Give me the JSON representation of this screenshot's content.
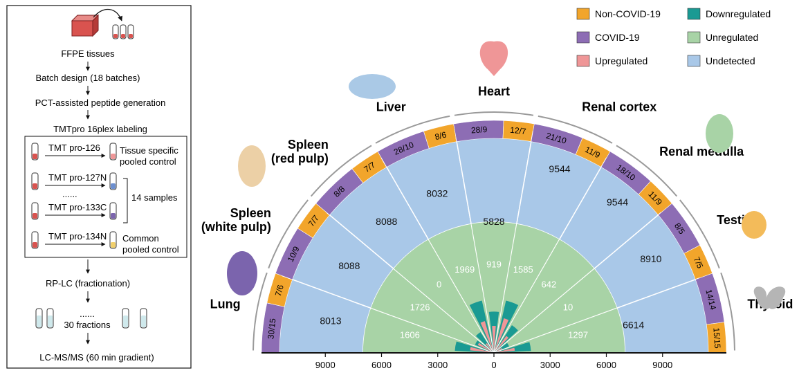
{
  "workflow": {
    "steps": [
      "FFPE tissues",
      "Batch design (18 batches)",
      "PCT-assisted peptide generation",
      "TMTpro 16plex labeling"
    ],
    "labeling_rows": [
      {
        "channel": "TMT pro-126",
        "note_lines": [
          "Tissue specific",
          "pooled control"
        ]
      },
      {
        "channel": "TMT pro-127N",
        "note_lines": []
      },
      {
        "channel": "......",
        "note_lines": []
      },
      {
        "channel": "TMT pro-133C",
        "note_lines": []
      },
      {
        "channel": "TMT pro-134N",
        "note_lines": [
          "Common",
          "pooled control"
        ]
      }
    ],
    "samples_label": "14 samples",
    "rplc_step": "RP-LC (fractionation)",
    "fractions_dots": "......",
    "fractions_label": "30 fractions",
    "lcms_step": "LC-MS/MS (60 min gradient)"
  },
  "legend": [
    {
      "label": "Non-COVID-19",
      "color": "#f2a52b"
    },
    {
      "label": "Downregulated",
      "color": "#1a9a93"
    },
    {
      "label": "COVID-19",
      "color": "#8d6db4"
    },
    {
      "label": "Unregulated",
      "color": "#a8d3a6"
    },
    {
      "label": "Upregulated",
      "color": "#ef9697"
    },
    {
      "label": "Undetected",
      "color": "#a9c8e8"
    }
  ],
  "colors": {
    "non_covid": "#f2a52b",
    "covid": "#8d6db4",
    "upregulated": "#ef9697",
    "downregulated": "#1a9a93",
    "unregulated": "#a8d3a6",
    "undetected": "#a9c8e8",
    "lung_icon": "#7b64ad",
    "spleen_icon": "#ecd0a6",
    "liver_icon": "#aac9e6",
    "heart_icon": "#ef9697",
    "kidney_icon": "#a8d3a6",
    "testis_icon": "#f3bb5a",
    "thyroid_icon": "#b5b5b5"
  },
  "axis": {
    "ticks": [
      9000,
      6000,
      3000,
      0,
      3000,
      6000,
      9000
    ],
    "max": 12000
  },
  "organs": [
    {
      "name_lines": [
        "Lung"
      ],
      "sectors": [
        {
          "n": "30/15",
          "o": "7/6",
          "undetected": 8013,
          "unregulated": 1606,
          "up": 800,
          "down": 950
        }
      ]
    },
    {
      "name_lines": [
        "Spleen",
        "(white pulp)"
      ],
      "sectors": [
        {
          "n": "10/9",
          "o": "7/7",
          "undetected": 8088,
          "unregulated": 1726,
          "up": 600,
          "down": 500
        }
      ]
    },
    {
      "name_lines": [
        "Spleen",
        "(red pulp)"
      ],
      "sectors": [
        {
          "n": "8/8",
          "o": "7/7",
          "undetected": 8088,
          "unregulated": 0,
          "up": 400,
          "down": 600
        }
      ]
    },
    {
      "name_lines": [
        "Liver"
      ],
      "sectors": [
        {
          "n": "28/10",
          "o": "8/6",
          "undetected": 8032,
          "unregulated": 1969,
          "up": 1100,
          "down": 1300
        }
      ]
    },
    {
      "name_lines": [
        "Heart"
      ],
      "sectors": [
        {
          "n": "28/9",
          "o": "12/7",
          "undetected": 5828,
          "unregulated": 919,
          "up": 900,
          "down": 1000
        }
      ]
    },
    {
      "name_lines": [
        "Renal cortex"
      ],
      "sectors": [
        {
          "n": "21/10",
          "o": "11/9",
          "undetected": 9544,
          "unregulated": 1585,
          "up": 1200,
          "down": 1300
        }
      ]
    },
    {
      "name_lines": [
        "Renal medulla"
      ],
      "sectors": [
        {
          "n": "18/10",
          "o": "11/9",
          "undetected": 9544,
          "unregulated": 642,
          "up": 700,
          "down": 800
        }
      ]
    },
    {
      "name_lines": [
        "Testis"
      ],
      "sectors": [
        {
          "n": "8/5",
          "o": "7/5",
          "undetected": 8910,
          "unregulated": 10,
          "up": 300,
          "down": 400
        }
      ]
    },
    {
      "name_lines": [
        "Thyroid"
      ],
      "sectors": [
        {
          "n": "14/14",
          "o": "15/15",
          "undetected": 6614,
          "unregulated": 1297,
          "up": 700,
          "down": 900
        }
      ]
    }
  ]
}
